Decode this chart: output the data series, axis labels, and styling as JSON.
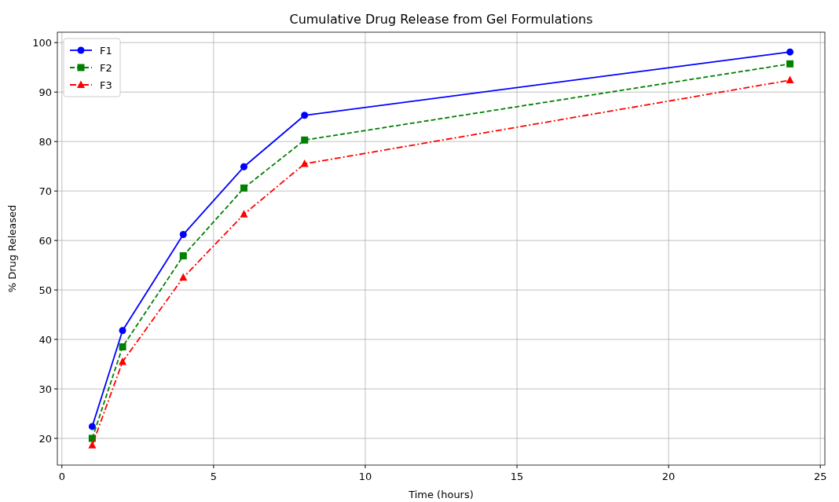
{
  "chart_data": {
    "type": "line",
    "title": "Cumulative Drug Release from Gel Formulations",
    "xlabel": "Time (hours)",
    "ylabel": "% Drug Released",
    "x": [
      1,
      2,
      4,
      6,
      8,
      24
    ],
    "series": [
      {
        "name": "F1",
        "color": "#0000ff",
        "marker": "circle",
        "line_style": "solid",
        "values": [
          22.4,
          41.8,
          61.2,
          74.9,
          85.3,
          98.1
        ]
      },
      {
        "name": "F2",
        "color": "#008000",
        "marker": "square",
        "line_style": "dashed",
        "values": [
          20,
          38.5,
          56.9,
          70.6,
          80.3,
          95.7
        ]
      },
      {
        "name": "F3",
        "color": "#ff0000",
        "marker": "triangle",
        "line_style": "dashdot",
        "values": [
          18.6,
          35.5,
          52.5,
          65.3,
          75.5,
          92.4
        ]
      }
    ],
    "xlim": [
      -0.15,
      25.15
    ],
    "ylim": [
      14.6,
      102.1
    ],
    "xticks": [
      0,
      5,
      10,
      15,
      20,
      25
    ],
    "yticks": [
      20,
      30,
      40,
      50,
      60,
      70,
      80,
      90,
      100
    ],
    "grid": true,
    "legend": "top left"
  }
}
